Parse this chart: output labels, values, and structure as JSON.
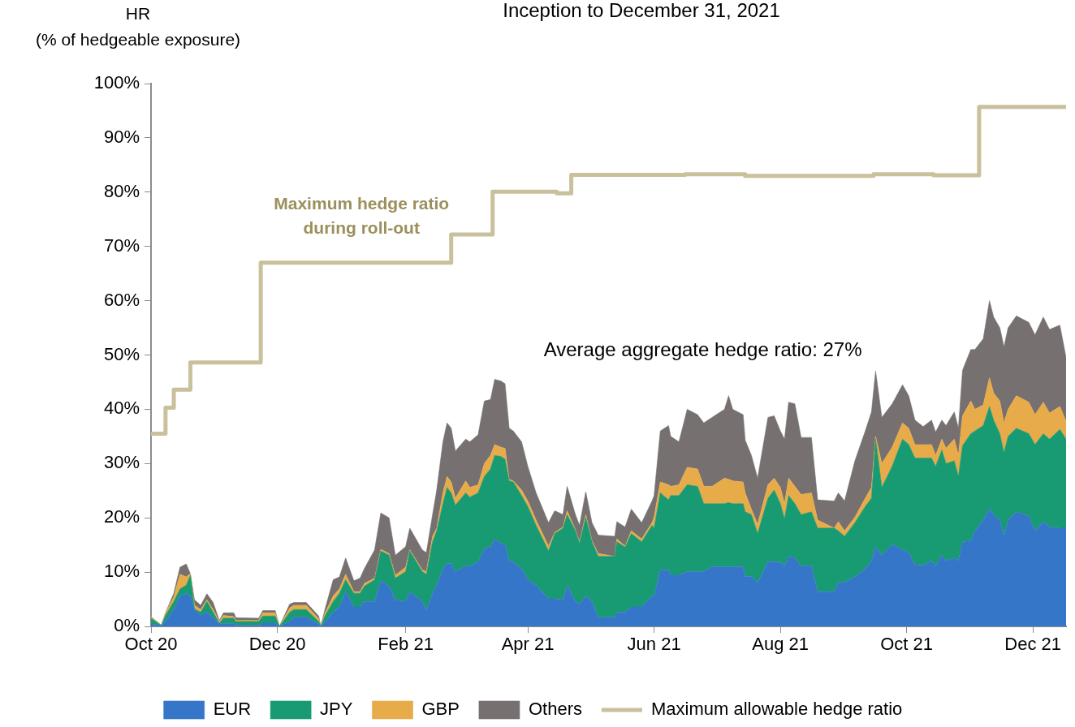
{
  "chart_data": {
    "type": "area",
    "title": "Inception to December 31, 2021",
    "ylabel": "HR\n(% of hedgeable exposure)",
    "stacked": true,
    "grid": false,
    "legend": "bottom",
    "marker": "none",
    "annotations": [
      "Maximum hedge ratio\nduring roll-out",
      "Average aggregate hedge ratio: 27%"
    ],
    "xlim": [
      "2020-10-01",
      "2021-12-17"
    ],
    "xticks": [
      {
        "value": "2020-10-01",
        "label": "Oct 20"
      },
      {
        "value": "2020-12-01",
        "label": "Dec 20"
      },
      {
        "value": "2021-02-01",
        "label": "Feb 21"
      },
      {
        "value": "2021-04-01",
        "label": "Apr 21"
      },
      {
        "value": "2021-06-01",
        "label": "Jun 21"
      },
      {
        "value": "2021-08-01",
        "label": "Aug 21"
      },
      {
        "value": "2021-10-01",
        "label": "Oct 21"
      },
      {
        "value": "2021-12-01",
        "label": "Dec 21"
      }
    ],
    "ylim": [
      0,
      100
    ],
    "yticks": [
      {
        "value": 0,
        "label": "0%"
      },
      {
        "value": 10,
        "label": "10%"
      },
      {
        "value": 20,
        "label": "20%"
      },
      {
        "value": 30,
        "label": "30%"
      },
      {
        "value": 40,
        "label": "40%"
      },
      {
        "value": 50,
        "label": "50%"
      },
      {
        "value": 60,
        "label": "60%"
      },
      {
        "value": 70,
        "label": "70%"
      },
      {
        "value": 80,
        "label": "80%"
      },
      {
        "value": 90,
        "label": "90%"
      },
      {
        "value": 100,
        "label": "100%"
      }
    ],
    "x": [
      "2020-10-01",
      "2020-10-06",
      "2020-10-08",
      "2020-10-12",
      "2020-10-15",
      "2020-10-18",
      "2020-10-20",
      "2020-10-22",
      "2020-10-25",
      "2020-10-28",
      "2020-10-31",
      "2020-11-03",
      "2020-11-05",
      "2020-11-10",
      "2020-11-11",
      "2020-11-22",
      "2020-11-24",
      "2020-11-30",
      "2020-12-02",
      "2020-12-07",
      "2020-12-09",
      "2020-12-15",
      "2020-12-21",
      "2020-12-22",
      "2020-12-24",
      "2020-12-28",
      "2020-12-31",
      "2021-01-03",
      "2021-01-07",
      "2021-01-10",
      "2021-01-12",
      "2021-01-17",
      "2021-01-20",
      "2021-01-24",
      "2021-01-27",
      "2021-02-01",
      "2021-02-03",
      "2021-02-09",
      "2021-02-11",
      "2021-02-14",
      "2021-02-16",
      "2021-02-19",
      "2021-02-21",
      "2021-02-23",
      "2021-02-25",
      "2021-03-02",
      "2021-03-04",
      "2021-03-08",
      "2021-03-11",
      "2021-03-14",
      "2021-03-16",
      "2021-03-19",
      "2021-03-21",
      "2021-03-23",
      "2021-03-25",
      "2021-03-29",
      "2021-04-01",
      "2021-04-05",
      "2021-04-11",
      "2021-04-14",
      "2021-04-18",
      "2021-04-20",
      "2021-04-24",
      "2021-04-26",
      "2021-04-29",
      "2021-05-02",
      "2021-05-05",
      "2021-05-13",
      "2021-05-14",
      "2021-05-18",
      "2021-05-21",
      "2021-05-26",
      "2021-05-31",
      "2021-06-01",
      "2021-06-04",
      "2021-06-08",
      "2021-06-09",
      "2021-06-13",
      "2021-06-17",
      "2021-06-22",
      "2021-06-25",
      "2021-06-29",
      "2021-07-05",
      "2021-07-07",
      "2021-07-09",
      "2021-07-14",
      "2021-07-15",
      "2021-07-18",
      "2021-07-21",
      "2021-07-26",
      "2021-07-29",
      "2021-08-01",
      "2021-08-03",
      "2021-08-05",
      "2021-08-08",
      "2021-08-11",
      "2021-08-16",
      "2021-08-19",
      "2021-08-27",
      "2021-08-29",
      "2021-09-01",
      "2021-09-06",
      "2021-09-11",
      "2021-09-14",
      "2021-09-16",
      "2021-09-19",
      "2021-09-24",
      "2021-09-29",
      "2021-10-02",
      "2021-10-05",
      "2021-10-09",
      "2021-10-13",
      "2021-10-15",
      "2021-10-18",
      "2021-10-20",
      "2021-10-24",
      "2021-10-26",
      "2021-10-28",
      "2021-11-01",
      "2021-11-03",
      "2021-11-07",
      "2021-11-10",
      "2021-11-12",
      "2021-11-15",
      "2021-11-17",
      "2021-11-19",
      "2021-11-23",
      "2021-11-29",
      "2021-12-02",
      "2021-12-06",
      "2021-12-09",
      "2021-12-14",
      "2021-12-17"
    ],
    "series": [
      {
        "name": "EUR",
        "color": "#3676c8",
        "values": [
          0.5,
          0.2,
          1.0,
          3.1,
          5.6,
          6.1,
          5.6,
          3.1,
          2.1,
          2.6,
          1.6,
          0.5,
          0.5,
          0.5,
          0.2,
          0.2,
          0.6,
          0.6,
          0,
          0.9,
          1.7,
          1.7,
          0.4,
          0,
          0.9,
          2.6,
          3.6,
          6.4,
          3.6,
          3.6,
          4.6,
          4.6,
          8.4,
          7.4,
          4.9,
          4.6,
          6.4,
          4.6,
          2.9,
          6.1,
          7.6,
          10.6,
          11.6,
          11.6,
          10.1,
          11.1,
          11.1,
          11.9,
          14.3,
          14.6,
          16.1,
          15.3,
          15.1,
          12.1,
          11.9,
          10.6,
          8.6,
          7.6,
          5.1,
          5.1,
          4.9,
          7.6,
          4.6,
          4.1,
          5.6,
          4.6,
          1.7,
          1.7,
          2.6,
          2.6,
          3.6,
          3.6,
          5.6,
          5.6,
          10.4,
          10.4,
          9.4,
          9.4,
          10.1,
          10.1,
          10.1,
          11.0,
          11.0,
          11.0,
          11.0,
          11.0,
          9.2,
          9.2,
          8.1,
          11.9,
          11.9,
          11.9,
          11.1,
          12.9,
          12.6,
          11.1,
          11.1,
          6.4,
          6.4,
          8.1,
          8.1,
          9.1,
          10.6,
          12.1,
          14.6,
          13.1,
          15.1,
          14.1,
          13.6,
          11.4,
          11.2,
          12.1,
          11.1,
          13.1,
          12.1,
          12.6,
          12.1,
          15.6,
          15.8,
          17.6,
          19.6,
          21.6,
          20.6,
          19.6,
          16.6,
          19.6,
          21.1,
          20.3,
          17.6,
          19.3,
          18.3,
          18.1,
          18.1
        ]
      },
      {
        "name": "JPY",
        "color": "#189b72",
        "values": [
          1.0,
          0,
          1.0,
          1.5,
          1.3,
          1.5,
          3.8,
          0.1,
          0.5,
          2.0,
          1.0,
          0.1,
          1.0,
          1.0,
          0.7,
          0.7,
          1.3,
          1.3,
          0,
          1.7,
          1.4,
          1.4,
          0.5,
          0,
          1.0,
          2.0,
          2.5,
          2.2,
          2.5,
          2.5,
          2.8,
          4.0,
          5.5,
          5.7,
          4.0,
          5.5,
          7.5,
          5.5,
          6.7,
          9.5,
          10.0,
          12.0,
          14.0,
          13.0,
          12.2,
          13.5,
          12.7,
          12.7,
          13.3,
          14.4,
          15.4,
          16.0,
          15.7,
          14.7,
          14.7,
          13.5,
          13.5,
          11.0,
          8.8,
          12.0,
          13.2,
          13.0,
          13.0,
          11.2,
          14.5,
          11.0,
          11.2,
          11.2,
          13.0,
          12.0,
          13.5,
          12.0,
          13.0,
          12.5,
          14.2,
          12.9,
          14.7,
          14.7,
          16.0,
          15.7,
          12.5,
          11.6,
          11.6,
          11.8,
          11.6,
          11.6,
          11.9,
          11.4,
          9.0,
          11.7,
          13.2,
          10.7,
          8.7,
          11.2,
          10.0,
          9.5,
          10.0,
          11.7,
          11.7,
          9.5,
          8.5,
          10.0,
          11.5,
          11.5,
          19.9,
          12.5,
          14.4,
          20.4,
          19.9,
          19.6,
          19.8,
          18.9,
          18.4,
          19.4,
          17.9,
          17.9,
          15.5,
          17.7,
          19.7,
          18.4,
          17.4,
          18.9,
          17.4,
          15.9,
          15.4,
          15.4,
          15.4,
          15.2,
          15.9,
          16.2,
          16.2,
          18.2,
          16.4
        ]
      },
      {
        "name": "GBP",
        "color": "#e8ab4a",
        "values": [
          0.3,
          0,
          0.5,
          0.8,
          2.7,
          1.5,
          0.3,
          0.7,
          0.5,
          0.3,
          0.5,
          0.3,
          0.5,
          0.3,
          0.2,
          0.2,
          0.6,
          0.6,
          0,
          0.8,
          0.8,
          0.8,
          0.5,
          0,
          0.5,
          1.0,
          0.8,
          1.0,
          0.3,
          0.3,
          0.5,
          0.3,
          0.3,
          0.3,
          0.5,
          0.8,
          0.2,
          0.3,
          0.5,
          1.0,
          0.5,
          2.0,
          2.0,
          2.0,
          1.3,
          2.2,
          1.8,
          1.5,
          2.4,
          2.5,
          2.0,
          1.7,
          2.0,
          0.3,
          0.2,
          1.0,
          1.0,
          1.0,
          0.9,
          0.2,
          0.2,
          0.7,
          0.2,
          0.3,
          0.5,
          0.2,
          0.5,
          0,
          0.5,
          0.2,
          0.5,
          0.5,
          0.5,
          2.0,
          2.0,
          2.8,
          1.7,
          2.0,
          3.2,
          3.2,
          3.2,
          3.2,
          4.7,
          4.3,
          4.2,
          4.0,
          3.5,
          1.0,
          1.7,
          2.5,
          2.2,
          3.0,
          2.8,
          3.2,
          3.2,
          3.7,
          3.5,
          1.5,
          0,
          1.7,
          1.0,
          1.0,
          1.5,
          2.0,
          0.5,
          4.4,
          3.5,
          3.0,
          3.0,
          2.5,
          2.5,
          2.5,
          2.0,
          2.0,
          2.8,
          4.0,
          3.9,
          5.5,
          6.0,
          4.0,
          3.8,
          5.3,
          5.0,
          6.0,
          5.5,
          5.0,
          6.0,
          5.8,
          5.5,
          5.8,
          4.8,
          4.2,
          3.3
        ]
      },
      {
        "name": "Others",
        "color": "#767170",
        "values": [
          0,
          0,
          0,
          0.7,
          1.3,
          2.4,
          0,
          1.0,
          0.8,
          1.1,
          1.3,
          0.2,
          0.5,
          0.7,
          0.5,
          0.4,
          0.4,
          0.4,
          0,
          0.7,
          0.5,
          0.5,
          0.5,
          0,
          0.7,
          3.0,
          2.2,
          3.0,
          2.0,
          2.5,
          2.7,
          5.2,
          6.7,
          6.6,
          3.7,
          3.8,
          4.0,
          3.7,
          3.5,
          4.0,
          7.0,
          9.4,
          9.9,
          9.9,
          8.7,
          7.7,
          8.4,
          9.2,
          11.5,
          10.3,
          12.0,
          12.2,
          11.9,
          9.4,
          9.2,
          8.9,
          6.4,
          5.0,
          4.3,
          4.0,
          2.3,
          4.5,
          2.8,
          3.0,
          4.2,
          3.3,
          3.4,
          3.7,
          3.2,
          3.5,
          4.0,
          3.0,
          4.0,
          4.0,
          9.4,
          10.9,
          9.2,
          7.9,
          10.7,
          10.0,
          11.7,
          12.7,
          12.7,
          15.4,
          13.2,
          12.4,
          9.7,
          9.9,
          8.5,
          12.4,
          11.5,
          10.4,
          11.9,
          14.0,
          15.2,
          10.5,
          10.2,
          3.7,
          5.0,
          5.3,
          5.5,
          10.4,
          12.4,
          13.9,
          12.0,
          8.5,
          8.0,
          7.0,
          6.0,
          4.5,
          3.3,
          4.5,
          4.3,
          3.5,
          4.2,
          5.0,
          5.0,
          8.4,
          9.5,
          11.0,
          12.2,
          14.2,
          14.0,
          13.5,
          14.0,
          15.0,
          14.7,
          14.7,
          14.7,
          15.7,
          15.4,
          15.0,
          11.7
        ]
      },
      {
        "name": "Maximum allowable hedge ratio",
        "type": "step",
        "color": "#c9c09c",
        "x": [
          "2020-10-01",
          "2020-10-08",
          "2020-10-12",
          "2020-10-20",
          "2020-11-23",
          "2021-02-23",
          "2021-03-15",
          "2021-04-15",
          "2021-04-22",
          "2021-06-16",
          "2021-07-15",
          "2021-09-15",
          "2021-10-14",
          "2021-11-05",
          "2021-12-17"
        ],
        "values": [
          35.5,
          40.3,
          43.6,
          48.6,
          67.0,
          72.2,
          80.1,
          79.8,
          83.2,
          83.3,
          83.0,
          83.3,
          83.1,
          95.7,
          95.7
        ]
      }
    ]
  }
}
